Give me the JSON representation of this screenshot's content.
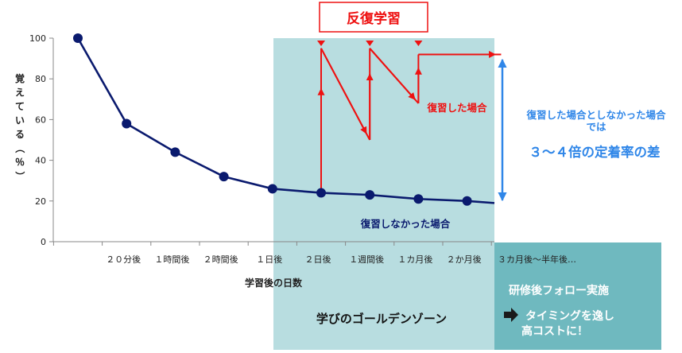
{
  "chart_data": {
    "type": "line",
    "ylabel": "覚えている（％）",
    "xlabel": "学習後の日数",
    "ylim": [
      0,
      100
    ],
    "yticks": [
      0,
      20,
      40,
      60,
      80,
      100
    ],
    "categories": [
      "",
      "２０分後",
      "１時間後",
      "２時間後",
      "１日後",
      "２日後",
      "１週間後",
      "１カ月後",
      "２か月後"
    ],
    "extra_category": "３カ月後～半年後…",
    "grid": false,
    "series": [
      {
        "name": "復習しなかった場合",
        "values": [
          100,
          58,
          44,
          32,
          26,
          24,
          23,
          21,
          20
        ],
        "tail": 19,
        "color": "#0a1a6e"
      },
      {
        "name": "復習した場合",
        "color": "#ee1111",
        "points": [
          [
            5,
            24
          ],
          [
            5,
            95
          ],
          [
            6,
            50
          ],
          [
            6,
            95
          ],
          [
            7,
            68
          ],
          [
            7,
            92
          ],
          [
            8.7,
            92
          ]
        ]
      }
    ],
    "review_marks": [
      5,
      6,
      7
    ]
  },
  "annotations": {
    "review_title": "反復学習",
    "golden_zone": "学びのゴールデンゾーン",
    "difference_line1": "復習した場合としなかった場合",
    "difference_line2": "では",
    "difference_highlight": "３～４倍の定着率の差",
    "followup_title": "研修後フォロー実施",
    "followup_line1": "タイミングを逸し",
    "followup_line2": "高コストに！"
  },
  "colors": {
    "golden_zone_bg": "#b8dde0",
    "followup_bg": "#6fb9bf",
    "accent_blue": "#2f86e8",
    "review_red": "#ee1111",
    "curve_navy": "#0a1a6e"
  }
}
